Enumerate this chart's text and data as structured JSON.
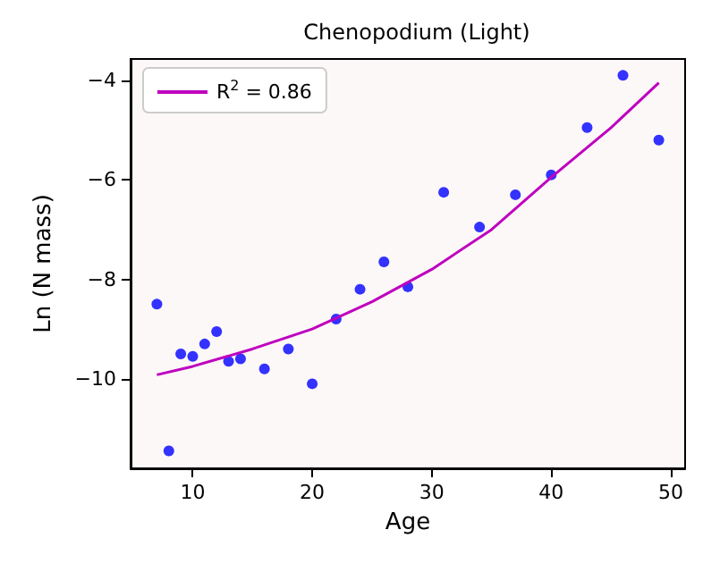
{
  "chart_data": {
    "type": "scatter",
    "title": "Chenopodium (Light)",
    "xlabel": "Age",
    "ylabel": "Ln (N mass)",
    "xlim": [
      4.8,
      51.2
    ],
    "xticks": [
      10,
      20,
      30,
      40,
      50
    ],
    "ylim": [
      -11.8,
      -3.57
    ],
    "yticks": [
      -10,
      -8,
      -6,
      -4
    ],
    "grid": false,
    "legend": "top left",
    "series": [
      {
        "color": "#0000ff",
        "marker": "circle",
        "x": [
          7,
          8,
          9,
          10,
          11,
          12,
          13,
          14,
          16,
          18,
          20,
          22,
          24,
          26,
          28,
          31,
          34,
          37,
          40,
          43,
          46,
          49
        ],
        "values": [
          -8.5,
          -11.45,
          -9.5,
          -9.55,
          -9.3,
          -9.05,
          -9.65,
          -9.6,
          -9.8,
          -9.4,
          -10.1,
          -8.8,
          -8.2,
          -7.65,
          -8.15,
          -6.25,
          -6.95,
          -6.3,
          -5.9,
          -4.95,
          -3.9,
          -5.2
        ]
      },
      {
        "type": "line",
        "name": "R$^{2}$ = 0.86",
        "color": "#bf00bf",
        "marker": "none",
        "line_style": "solid",
        "x": [
          7,
          10,
          15,
          20,
          25,
          30,
          35,
          40,
          45,
          49
        ],
        "values": [
          -9.92,
          -9.75,
          -9.4,
          -9.0,
          -8.45,
          -7.8,
          -7.0,
          -5.95,
          -4.95,
          -4.05
        ]
      }
    ]
  }
}
